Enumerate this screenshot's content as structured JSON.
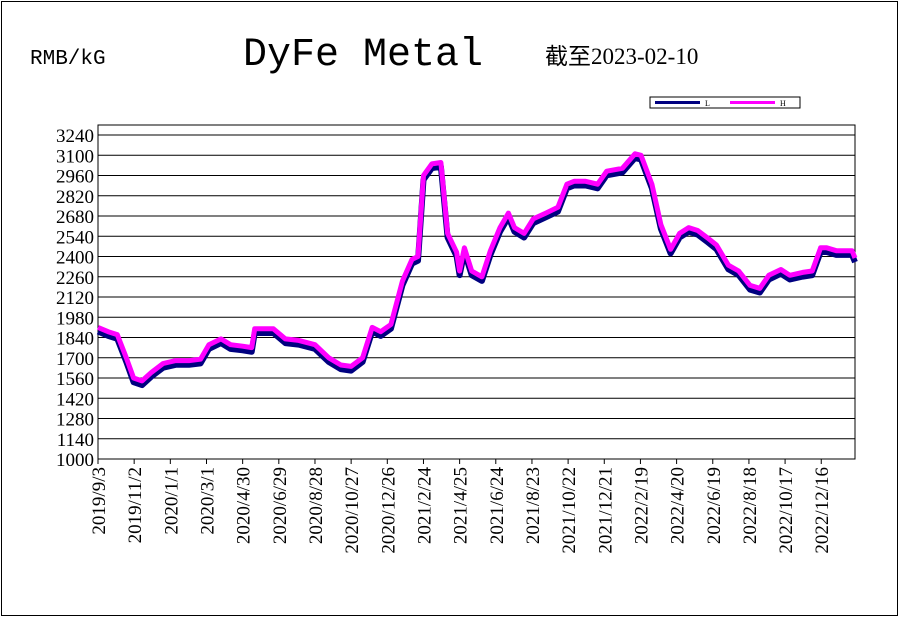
{
  "chart_data": {
    "type": "line",
    "title": "DyFe Metal",
    "unit_label": "RMB/kG",
    "date_note": "截至2023-02-10",
    "x": [
      "2019/9/3",
      "2019/9/20",
      "2019/10/5",
      "2019/10/20",
      "2019/11/1",
      "2019/11/15",
      "2019/12/1",
      "2019/12/20",
      "2020/1/10",
      "2020/2/1",
      "2020/2/20",
      "2020/3/5",
      "2020/3/25",
      "2020/4/10",
      "2020/4/30",
      "2020/5/15",
      "2020/5/20",
      "2020/6/20",
      "2020/7/10",
      "2020/8/1",
      "2020/8/28",
      "2020/9/20",
      "2020/10/10",
      "2020/10/27",
      "2020/11/15",
      "2020/12/1",
      "2020/12/15",
      "2021/1/1",
      "2021/1/20",
      "2021/2/5",
      "2021/2/15",
      "2021/2/24",
      "2021/3/10",
      "2021/3/25",
      "2021/4/5",
      "2021/4/20",
      "2021/4/25",
      "2021/5/3",
      "2021/5/15",
      "2021/6/1",
      "2021/6/15",
      "2021/7/1",
      "2021/7/15",
      "2021/7/25",
      "2021/8/10",
      "2021/8/25",
      "2021/9/15",
      "2021/10/5",
      "2021/10/20",
      "2021/11/1",
      "2021/11/20",
      "2021/12/10",
      "2021/12/25",
      "2022/1/20",
      "2022/2/10",
      "2022/2/20",
      "2022/3/10",
      "2022/3/25",
      "2022/4/10",
      "2022/4/25",
      "2022/5/10",
      "2022/5/25",
      "2022/6/10",
      "2022/6/25",
      "2022/7/15",
      "2022/8/1",
      "2022/8/20",
      "2022/9/5",
      "2022/9/20",
      "2022/10/10",
      "2022/10/25",
      "2022/11/15",
      "2022/12/1",
      "2022/12/15",
      "2022/12/25",
      "2023/1/10",
      "2023/2/5",
      "2023/2/10"
    ],
    "series": [
      {
        "name": "L",
        "color": "#000080",
        "values": [
          1895,
          1865,
          1845,
          1685,
          1545,
          1525,
          1585,
          1645,
          1665,
          1665,
          1675,
          1775,
          1815,
          1775,
          1765,
          1755,
          1885,
          1885,
          1815,
          1805,
          1775,
          1685,
          1635,
          1625,
          1685,
          1895,
          1865,
          1915,
          2215,
          2365,
          2385,
          2945,
          3025,
          3035,
          2545,
          2415,
          2285,
          2445,
          2285,
          2245,
          2425,
          2585,
          2685,
          2585,
          2545,
          2645,
          2685,
          2725,
          2885,
          2905,
          2905,
          2885,
          2975,
          2995,
          3095,
          3085,
          2885,
          2605,
          2435,
          2545,
          2585,
          2565,
          2515,
          2465,
          2325,
          2285,
          2185,
          2165,
          2255,
          2295,
          2255,
          2275,
          2285,
          2445,
          2445,
          2425,
          2425,
          2375
        ]
      },
      {
        "name": "H",
        "color": "#ff00ff",
        "values": [
          1910,
          1880,
          1860,
          1700,
          1560,
          1540,
          1600,
          1660,
          1680,
          1680,
          1690,
          1790,
          1830,
          1790,
          1780,
          1770,
          1900,
          1900,
          1830,
          1820,
          1790,
          1700,
          1650,
          1640,
          1700,
          1910,
          1880,
          1930,
          2230,
          2380,
          2400,
          2960,
          3040,
          3050,
          2560,
          2430,
          2300,
          2460,
          2300,
          2260,
          2440,
          2600,
          2700,
          2600,
          2560,
          2660,
          2700,
          2740,
          2900,
          2920,
          2920,
          2900,
          2990,
          3010,
          3110,
          3100,
          2900,
          2620,
          2450,
          2560,
          2600,
          2580,
          2530,
          2480,
          2340,
          2300,
          2200,
          2180,
          2270,
          2310,
          2270,
          2290,
          2300,
          2460,
          2460,
          2440,
          2440,
          2390
        ]
      }
    ],
    "xlim": [
      "2019/9/3",
      "2023/2/10"
    ],
    "xticks": [
      "2019/9/3",
      "2019/11/2",
      "2020/1/1",
      "2020/3/1",
      "2020/4/30",
      "2020/6/29",
      "2020/8/28",
      "2020/10/27",
      "2020/12/26",
      "2021/2/24",
      "2021/4/25",
      "2021/6/24",
      "2021/8/23",
      "2021/10/22",
      "2021/12/21",
      "2022/2/19",
      "2022/4/20",
      "2022/6/19",
      "2022/8/18",
      "2022/10/17",
      "2022/12/16"
    ],
    "ylim": [
      1000,
      3240
    ],
    "yticks": [
      1000,
      1140,
      1280,
      1420,
      1560,
      1700,
      1840,
      1980,
      2120,
      2260,
      2400,
      2540,
      2680,
      2820,
      2960,
      3100,
      3240
    ],
    "grid": true,
    "legend": "top-right"
  }
}
